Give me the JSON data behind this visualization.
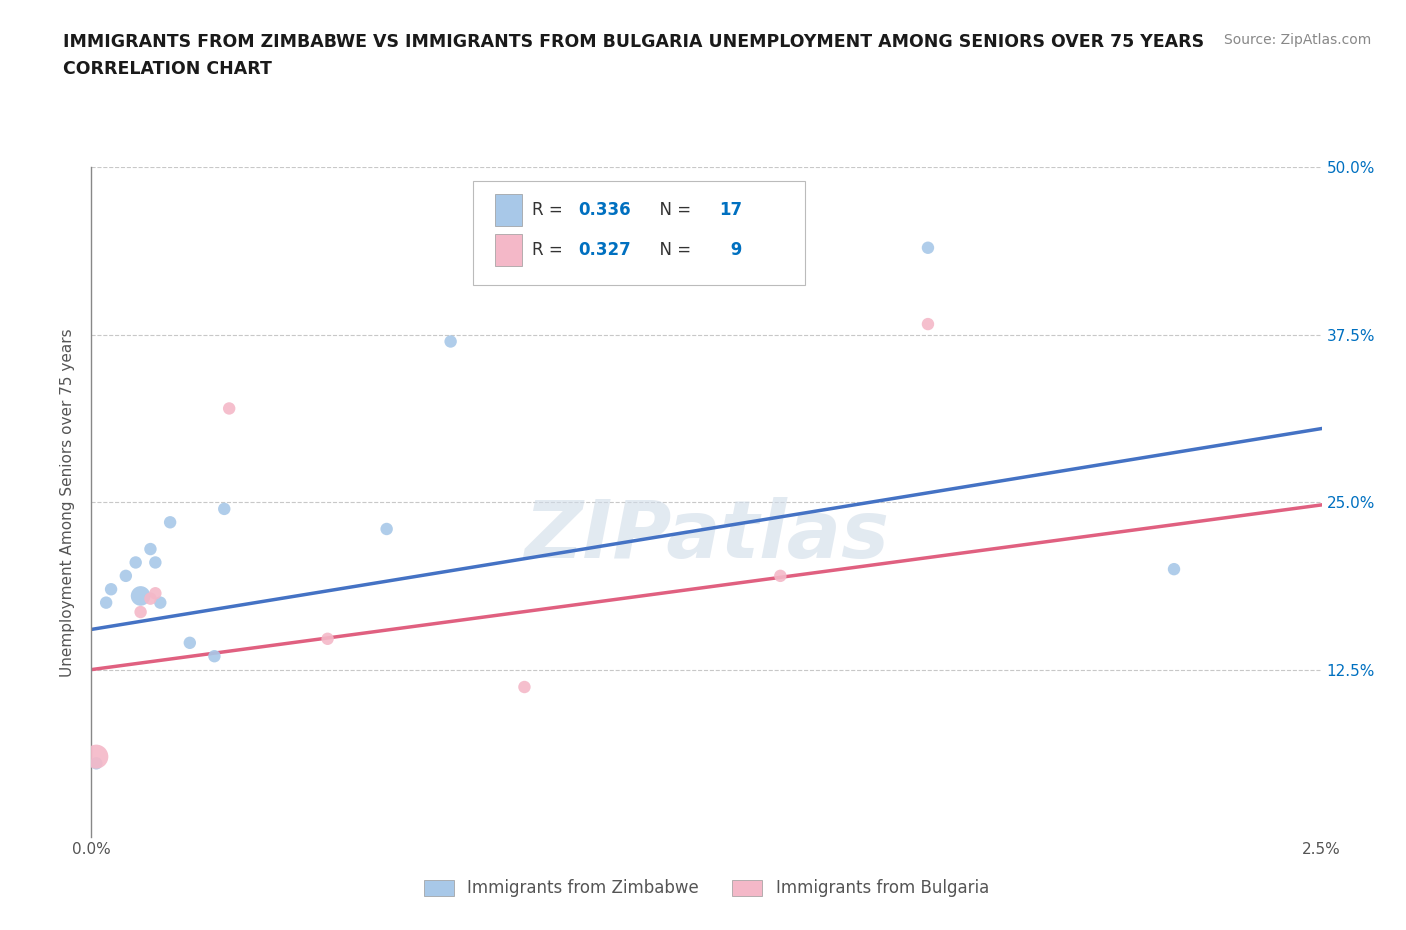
{
  "title_line1": "IMMIGRANTS FROM ZIMBABWE VS IMMIGRANTS FROM BULGARIA UNEMPLOYMENT AMONG SENIORS OVER 75 YEARS",
  "title_line2": "CORRELATION CHART",
  "source": "Source: ZipAtlas.com",
  "ylabel": "Unemployment Among Seniors over 75 years",
  "xlim": [
    0.0,
    0.025
  ],
  "ylim": [
    0.0,
    0.5
  ],
  "xticks": [
    0.0,
    0.005,
    0.01,
    0.015,
    0.02,
    0.025
  ],
  "xtick_labels": [
    "0.0%",
    "",
    "",
    "",
    "",
    "2.5%"
  ],
  "yticks": [
    0.0,
    0.125,
    0.25,
    0.375,
    0.5
  ],
  "ytick_labels": [
    "",
    "12.5%",
    "25.0%",
    "37.5%",
    "50.0%"
  ],
  "zimbabwe_color": "#a8c8e8",
  "bulgaria_color": "#f4b8c8",
  "zimbabwe_line_color": "#4472c4",
  "bulgaria_line_color": "#e06080",
  "zimbabwe_R": 0.336,
  "zimbabwe_N": 17,
  "bulgaria_R": 0.327,
  "bulgaria_N": 9,
  "zimbabwe_x": [
    0.0001,
    0.0003,
    0.0004,
    0.0007,
    0.0009,
    0.001,
    0.0012,
    0.0013,
    0.0014,
    0.0016,
    0.002,
    0.0025,
    0.0027,
    0.006,
    0.0073,
    0.017,
    0.022
  ],
  "zimbabwe_y": [
    0.055,
    0.175,
    0.185,
    0.195,
    0.205,
    0.18,
    0.215,
    0.205,
    0.175,
    0.235,
    0.145,
    0.135,
    0.245,
    0.23,
    0.37,
    0.44,
    0.2
  ],
  "zimbabwe_size": [
    80,
    80,
    80,
    80,
    80,
    200,
    80,
    80,
    80,
    80,
    80,
    80,
    80,
    80,
    80,
    80,
    80
  ],
  "bulgaria_x": [
    0.0001,
    0.001,
    0.0012,
    0.0013,
    0.0028,
    0.0048,
    0.0088,
    0.014,
    0.017
  ],
  "bulgaria_y": [
    0.06,
    0.168,
    0.178,
    0.182,
    0.32,
    0.148,
    0.112,
    0.195,
    0.383
  ],
  "bulgaria_size": [
    300,
    80,
    80,
    80,
    80,
    80,
    80,
    80,
    80
  ],
  "zim_trend_y0": 0.155,
  "zim_trend_y1": 0.305,
  "bul_trend_y0": 0.125,
  "bul_trend_y1": 0.248,
  "watermark": "ZIPatlas",
  "background_color": "#ffffff",
  "grid_color": "#c8c8c8",
  "leg_R_color": "#0070c0",
  "leg_N_color": "#0070c0",
  "leg_label_color": "#333333"
}
